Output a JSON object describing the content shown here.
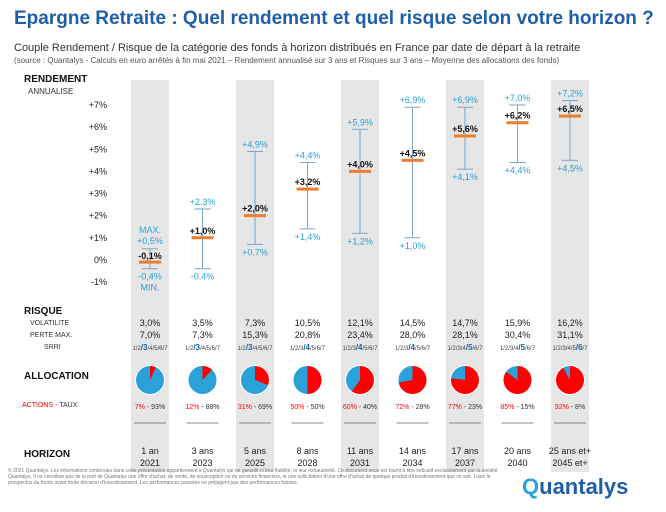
{
  "header": {
    "title": "Epargne Retraite : Quel rendement et quel risque selon votre horizon ?",
    "subtitle": "Couple Rendement / Risque de la catégorie des fonds à horizon distribués en France par date de départ à la retraite",
    "source": "(source : Quantalys - Calculs en euro arrêtés à fin mai 2021 – Rendement annualisé sur 3 ans et Risques sur 3 ans – Moyenne des allocations des fonds)"
  },
  "labels": {
    "rendement": "RENDEMENT",
    "annualise": "ANNUALISE",
    "risque": "RISQUE",
    "volatilite": "VOLATILITE",
    "perte_max": "PERTE MAX.",
    "srri": "SRRI",
    "allocation": "ALLOCATION",
    "actions": "ACTIONS",
    "taux": " - TAUX",
    "horizon": "HORIZON",
    "max": "MAX.",
    "min": "MIN."
  },
  "footer": {
    "disclaimer": "© 2021 Quantalys. Les informations contenues dans cette présentation appartiennent à Quantalys qui ne garantit ni leur fiabilité, ni leur exhaustivité. Ce document vous est fourni à titre indicatif exclusivement par la société Quantalys. Il ne constitue pas de la part de Quantalys une offre d'achat, de vente, de souscription ou de services financiers, ni une sollicitation d'une offre d'achat de quelque produit d'investissement que ce soit. Lisez le prospectus du fonds avant toute décision d'investissement. Les performances passées ne préjugent pas des performances futures.",
    "logo": "uantalys",
    "logo_q": "Q"
  },
  "colors": {
    "title": "#1f5fa8",
    "column": "#e6e6e6",
    "range": "#2aa1d8",
    "mean": "#ed7d31",
    "actions": "#ff0000",
    "taux": "#2aa1d8",
    "srri": "#1f5fa8"
  },
  "chart_data": {
    "type": "range",
    "title": "Epargne Retraite : Quel rendement et quel risque selon votre horizon ?",
    "ylabel": "RENDEMENT ANNUALISE",
    "ylim": [
      -1,
      7
    ],
    "yticks": [
      "+7%",
      "+6%",
      "+5%",
      "+4%",
      "+3%",
      "+2%",
      "+1%",
      "0%",
      "-1%"
    ],
    "ytick_values": [
      7,
      6,
      5,
      4,
      3,
      2,
      1,
      0,
      -1
    ],
    "srri_scale": [
      "1",
      "2",
      "3",
      "4",
      "5",
      "6",
      "7"
    ],
    "categories": [
      {
        "horizon": "1 an",
        "year": "2021",
        "mean": -0.1,
        "max": 0.5,
        "min": -0.4,
        "mean_label": "-0,1%",
        "max_label": "+0,5%",
        "min_label": "-0,4%",
        "volatilite": "3,0%",
        "perte_max": "7,0%",
        "srri": 3,
        "actions": 7,
        "taux": 93,
        "alloc_label": "7% - 93%"
      },
      {
        "horizon": "3 ans",
        "year": "2023",
        "mean": 1.0,
        "max": 2.3,
        "min": -0.4,
        "mean_label": "+1,0%",
        "max_label": "+2,3%",
        "min_label": "-0,4%",
        "volatilite": "3,5%",
        "perte_max": "7,3%",
        "srri": 3,
        "actions": 12,
        "taux": 88,
        "alloc_label": "12% - 88%"
      },
      {
        "horizon": "5 ans",
        "year": "2025",
        "mean": 2.0,
        "max": 4.9,
        "min": 0.7,
        "mean_label": "+2,0%",
        "max_label": "+4,9%",
        "min_label": "+0,7%",
        "volatilite": "7,3%",
        "perte_max": "15,3%",
        "srri": 3,
        "actions": 31,
        "taux": 69,
        "alloc_label": "31% - 69%"
      },
      {
        "horizon": "8 ans",
        "year": "2028",
        "mean": 3.2,
        "max": 4.4,
        "min": 1.4,
        "mean_label": "+3,2%",
        "max_label": "+4,4%",
        "min_label": "+1,4%",
        "volatilite": "10,5%",
        "perte_max": "20,8%",
        "srri": 4,
        "actions": 50,
        "taux": 50,
        "alloc_label": "50% - 50%"
      },
      {
        "horizon": "11 ans",
        "year": "2031",
        "mean": 4.0,
        "max": 5.9,
        "min": 1.2,
        "mean_label": "+4,0%",
        "max_label": "+5,9%",
        "min_label": "+1,2%",
        "volatilite": "12,1%",
        "perte_max": "23,4%",
        "srri": 4,
        "actions": 60,
        "taux": 40,
        "alloc_label": "60% - 40%"
      },
      {
        "horizon": "14 ans",
        "year": "2034",
        "mean": 4.5,
        "max": 6.9,
        "min": 1.0,
        "mean_label": "+4,5%",
        "max_label": "+6,9%",
        "min_label": "+1,0%",
        "volatilite": "14,5%",
        "perte_max": "28,0%",
        "srri": 4,
        "actions": 72,
        "taux": 28,
        "alloc_label": "72% - 28%"
      },
      {
        "horizon": "17 ans",
        "year": "2037",
        "mean": 5.6,
        "max": 6.9,
        "min": 4.1,
        "mean_label": "+5,6%",
        "max_label": "+6,9%",
        "min_label": "+4,1%",
        "volatilite": "14,7%",
        "perte_max": "28,1%",
        "srri": 5,
        "actions": 77,
        "taux": 23,
        "alloc_label": "77% - 23%"
      },
      {
        "horizon": "20 ans",
        "year": "2040",
        "mean": 6.2,
        "max": 7.0,
        "min": 4.4,
        "mean_label": "+6,2%",
        "max_label": "+7,0%",
        "min_label": "+4,4%",
        "volatilite": "15,9%",
        "perte_max": "30,4%",
        "srri": 5,
        "actions": 85,
        "taux": 15,
        "alloc_label": "85% - 15%"
      },
      {
        "horizon": "25 ans et+",
        "year": "2045 et+",
        "mean": 6.5,
        "max": 7.2,
        "min": 4.5,
        "mean_label": "+6,5%",
        "max_label": "+7,2%",
        "min_label": "+4,5%",
        "volatilite": "16,2%",
        "perte_max": "31,1%",
        "srri": 6,
        "actions": 92,
        "taux": 8,
        "alloc_label": "92% - 8%"
      }
    ]
  }
}
